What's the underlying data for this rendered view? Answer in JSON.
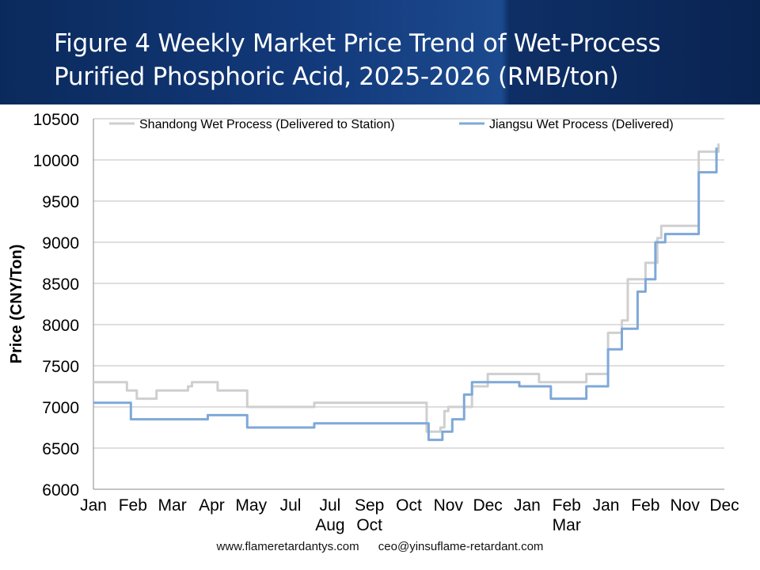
{
  "title": "Figure 4 Weekly Market Price Trend of Wet-Process Purified Phosphoric Acid, 2025-2026 (RMB/ton)",
  "footer": {
    "website": "www.flameretardantys.com",
    "email": "ceo@yinsuflame-retardant.com"
  },
  "colors": {
    "shandong": "#cfcfcf",
    "jiangsu": "#7fa8d8",
    "grid": "#bdbdbd",
    "banner": "#12397a"
  },
  "chart_data": {
    "type": "line",
    "ylabel": "Price (CNY/Ton)",
    "xlabel": "",
    "ylim": [
      6000,
      10500
    ],
    "yticks": [
      6000,
      6500,
      7000,
      7500,
      8000,
      8500,
      9000,
      9500,
      10000,
      10500
    ],
    "grid": true,
    "legend_position": "top",
    "x_tick_labels": [
      {
        "label": "Jan",
        "label2": ""
      },
      {
        "label": "Feb",
        "label2": ""
      },
      {
        "label": "Mar",
        "label2": ""
      },
      {
        "label": "Apr",
        "label2": ""
      },
      {
        "label": "May",
        "label2": ""
      },
      {
        "label": "Jul",
        "label2": ""
      },
      {
        "label": "Jul",
        "label2": "Aug"
      },
      {
        "label": "Sep",
        "label2": "Oct"
      },
      {
        "label": "Oct",
        "label2": ""
      },
      {
        "label": "Nov",
        "label2": ""
      },
      {
        "label": "Dec",
        "label2": ""
      },
      {
        "label": "Jan",
        "label2": ""
      },
      {
        "label": "Feb",
        "label2": "Mar"
      },
      {
        "label": "Jan",
        "label2": ""
      },
      {
        "label": "Feb",
        "label2": ""
      },
      {
        "label": "Nov",
        "label2": ""
      },
      {
        "label": "Dec",
        "label2": ""
      }
    ],
    "series": [
      {
        "name": "Shandong Wet Process (Delivered to Station)",
        "color": "#cfcfcf",
        "x": [
          0,
          0.8,
          0.85,
          1.1,
          1.6,
          2.4,
          2.5,
          3.1,
          3.15,
          3.7,
          3.9,
          5.5,
          5.6,
          6.0,
          8.0,
          8.4,
          8.45,
          8.8,
          8.9,
          9.0,
          9.6,
          10.0,
          10.8,
          11.3,
          12.5,
          13.0,
          13.05,
          13.4,
          13.55,
          14.0,
          14.3,
          14.4,
          14.8,
          15.3,
          15.35,
          15.8,
          15.85
        ],
        "y": [
          7300,
          7300,
          7200,
          7100,
          7200,
          7250,
          7300,
          7300,
          7200,
          7200,
          7000,
          7000,
          7050,
          7050,
          7050,
          7050,
          6700,
          6750,
          6950,
          7000,
          7250,
          7400,
          7400,
          7300,
          7400,
          7400,
          7900,
          8050,
          8550,
          8750,
          9050,
          9200,
          9200,
          9200,
          10100,
          10100,
          10200
        ]
      },
      {
        "name": "Jiangsu Wet Process (Delivered)",
        "color": "#7fa8d8",
        "x": [
          0,
          0.9,
          0.95,
          2.8,
          2.9,
          3.8,
          3.9,
          5.5,
          5.6,
          8.4,
          8.5,
          8.75,
          8.85,
          9.1,
          9.4,
          9.6,
          10.5,
          10.8,
          11.3,
          11.6,
          12.5,
          13.0,
          13.05,
          13.4,
          13.8,
          14.0,
          14.2,
          14.25,
          14.5,
          15.3,
          15.35,
          15.75,
          15.8
        ],
        "y": [
          7050,
          7050,
          6850,
          6850,
          6900,
          6900,
          6750,
          6750,
          6800,
          6800,
          6600,
          6600,
          6700,
          6850,
          7150,
          7300,
          7300,
          7250,
          7250,
          7100,
          7250,
          7250,
          7700,
          7950,
          8400,
          8550,
          8550,
          9000,
          9100,
          9100,
          9850,
          9850,
          10150
        ]
      }
    ]
  }
}
